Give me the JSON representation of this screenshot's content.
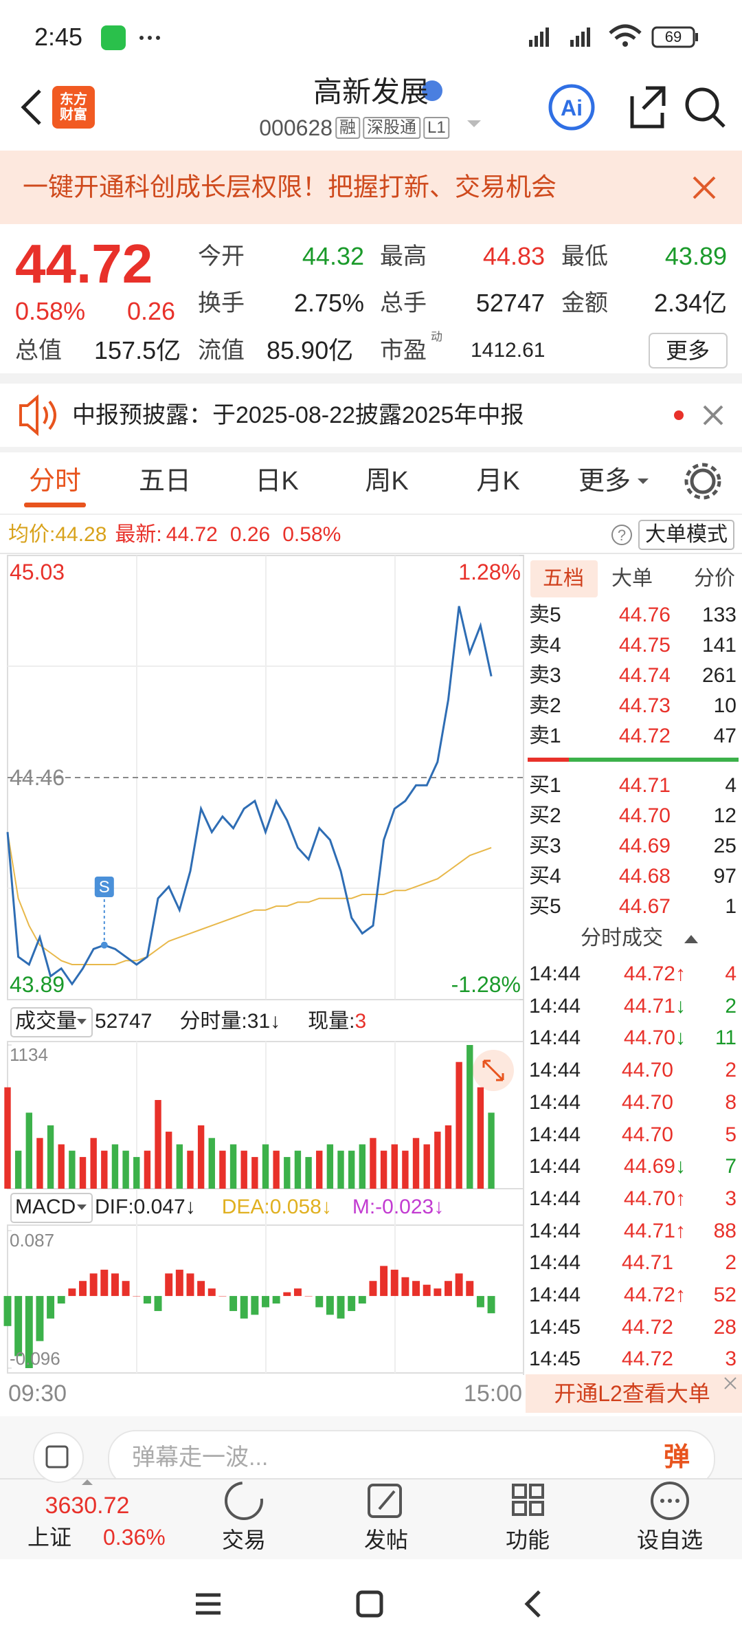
{
  "status_bar": {
    "time": "2:45",
    "battery": "69"
  },
  "header": {
    "logo": "东方财富",
    "title": "高新发展",
    "code": "000628",
    "tags": [
      "融",
      "深股通",
      "L1"
    ]
  },
  "banner": "一键开通科创成长层权限！把握打新、交易机会",
  "quote": {
    "price": "44.72",
    "change_pct": "0.58%",
    "change": "0.26",
    "fields": [
      {
        "label": "今开",
        "value": "44.32",
        "color": "#1a9a2a"
      },
      {
        "label": "最高",
        "value": "44.83",
        "color": "#e8312a"
      },
      {
        "label": "最低",
        "value": "43.89",
        "color": "#1a9a2a"
      },
      {
        "label": "换手",
        "value": "2.75%",
        "color": "#222222"
      },
      {
        "label": "总手",
        "value": "52747",
        "color": "#222222"
      },
      {
        "label": "金额",
        "value": "2.34亿",
        "color": "#222222"
      },
      {
        "label": "总值",
        "value": "157.5亿",
        "color": "#222222"
      },
      {
        "label": "流值",
        "value": "85.90亿",
        "color": "#222222"
      },
      {
        "label": "市盈",
        "sup": "动",
        "value": "1412.61",
        "color": "#222222"
      }
    ],
    "more": "更多"
  },
  "notice": "中报预披露：于2025-08-22披露2025年中报",
  "tabs": [
    "分时",
    "五日",
    "日K",
    "周K",
    "月K",
    "更多"
  ],
  "info_bar": {
    "avg_label": "均价:",
    "avg": "44.28",
    "latest_label": "最新:",
    "latest": "44.72",
    "change": "0.26",
    "change_pct": "0.58%",
    "help": "?",
    "mode": "大单模式"
  },
  "chart_data": [
    {
      "type": "line",
      "annotation": "S",
      "series": [
        {
          "color": "#2e6db4",
          "values": [
            44.32,
            44.0,
            43.98,
            44.05,
            43.95,
            43.97,
            43.93,
            43.97,
            44.02,
            44.03,
            44.02,
            44.0,
            43.98,
            44.0,
            44.15,
            44.18,
            44.12,
            44.22,
            44.38,
            44.32,
            44.36,
            44.33,
            44.38,
            44.4,
            44.32,
            44.4,
            44.35,
            44.28,
            44.25,
            44.33,
            44.3,
            44.22,
            44.1,
            44.06,
            44.08,
            44.3,
            44.38,
            44.4,
            44.44,
            44.44,
            44.5,
            44.66,
            44.9,
            44.78,
            44.85,
            44.72
          ]
        },
        {
          "color": "#e8b84a",
          "values": [
            44.32,
            44.15,
            44.08,
            44.03,
            44.01,
            43.99,
            43.98,
            43.98,
            43.98,
            43.98,
            43.98,
            43.99,
            43.99,
            44.0,
            44.02,
            44.04,
            44.05,
            44.06,
            44.07,
            44.08,
            44.09,
            44.1,
            44.11,
            44.12,
            44.12,
            44.13,
            44.13,
            44.14,
            44.14,
            44.15,
            44.15,
            44.15,
            44.15,
            44.16,
            44.16,
            44.16,
            44.17,
            44.17,
            44.18,
            44.19,
            44.2,
            44.22,
            44.24,
            44.26,
            44.27,
            44.28
          ]
        }
      ],
      "ylim": [
        43.89,
        45.03
      ],
      "yticks": [
        43.89,
        44.46,
        45.03
      ],
      "y2lim": [
        -1.28,
        1.28
      ],
      "y2ticks": [
        {
          "value": -1.28,
          "label": "-1.28%"
        },
        {
          "value": 1.28,
          "label": "1.28%"
        }
      ],
      "x_labels": [
        "09:30",
        "15:00"
      ]
    },
    {
      "type": "bar",
      "title": "成交量",
      "total": "52747",
      "minute_label": "分时量:",
      "minute_value": "31↓",
      "current_label": "现量:",
      "current_value": "3",
      "values": [
        800,
        300,
        600,
        400,
        500,
        350,
        300,
        250,
        400,
        300,
        350,
        300,
        250,
        300,
        700,
        450,
        350,
        300,
        500,
        400,
        300,
        350,
        300,
        250,
        350,
        300,
        250,
        300,
        250,
        300,
        350,
        300,
        300,
        350,
        400,
        300,
        350,
        300,
        400,
        350,
        450,
        500,
        1000,
        1134,
        800,
        600
      ],
      "ylim": [
        0,
        1134
      ],
      "yticks": [
        1134
      ]
    },
    {
      "type": "bar",
      "title": "MACD",
      "dif": "DIF:0.047↓",
      "dea": "DEA:0.058↓",
      "m": "M:-0.023↓",
      "values": [
        -0.04,
        -0.08,
        -0.096,
        -0.06,
        -0.03,
        -0.01,
        0.01,
        0.02,
        0.03,
        0.035,
        0.03,
        0.02,
        0,
        -0.01,
        -0.02,
        0.03,
        0.035,
        0.03,
        0.02,
        0.01,
        0,
        -0.02,
        -0.03,
        -0.025,
        -0.015,
        -0.01,
        0.005,
        0.01,
        0,
        -0.015,
        -0.025,
        -0.03,
        -0.02,
        -0.01,
        0.02,
        0.04,
        0.035,
        0.025,
        0.02,
        0.015,
        0.01,
        0.02,
        0.03,
        0.02,
        -0.015,
        -0.023
      ],
      "ylim": [
        -0.096,
        0.087
      ],
      "yticks": [
        -0.096,
        0.087
      ]
    }
  ],
  "order_book": {
    "tabs": [
      "五档",
      "大单",
      "分价"
    ],
    "asks": [
      {
        "label": "卖5",
        "price": "44.76",
        "volume": "133"
      },
      {
        "label": "卖4",
        "price": "44.75",
        "volume": "141"
      },
      {
        "label": "卖3",
        "price": "44.74",
        "volume": "261"
      },
      {
        "label": "卖2",
        "price": "44.73",
        "volume": "10"
      },
      {
        "label": "卖1",
        "price": "44.72",
        "volume": "47"
      }
    ],
    "bids": [
      {
        "label": "买1",
        "price": "44.71",
        "volume": "4"
      },
      {
        "label": "买2",
        "price": "44.70",
        "volume": "12"
      },
      {
        "label": "买3",
        "price": "44.69",
        "volume": "25"
      },
      {
        "label": "买4",
        "price": "44.68",
        "volume": "97"
      },
      {
        "label": "买5",
        "price": "44.67",
        "volume": "1"
      }
    ]
  },
  "trades": {
    "title": "分时成交",
    "rows": [
      {
        "time": "14:44",
        "price": "44.72",
        "arrow": "↑",
        "volume": "4",
        "color": "#e8312a"
      },
      {
        "time": "14:44",
        "price": "44.71",
        "arrow": "↓",
        "volume": "2",
        "color": "#1a9a2a"
      },
      {
        "time": "14:44",
        "price": "44.70",
        "arrow": "↓",
        "volume": "11",
        "color": "#1a9a2a"
      },
      {
        "time": "14:44",
        "price": "44.70",
        "volume": "2",
        "color": "#e8312a"
      },
      {
        "time": "14:44",
        "price": "44.70",
        "volume": "8",
        "color": "#e8312a"
      },
      {
        "time": "14:44",
        "price": "44.70",
        "volume": "5",
        "color": "#e8312a"
      },
      {
        "time": "14:44",
        "price": "44.69",
        "arrow": "↓",
        "volume": "7",
        "color": "#1a9a2a"
      },
      {
        "time": "14:44",
        "price": "44.70",
        "arrow": "↑",
        "volume": "3",
        "color": "#e8312a"
      },
      {
        "time": "14:44",
        "price": "44.71",
        "arrow": "↑",
        "volume": "88",
        "color": "#e8312a"
      },
      {
        "time": "14:44",
        "price": "44.71",
        "volume": "2",
        "color": "#e8312a"
      },
      {
        "time": "14:44",
        "price": "44.72",
        "arrow": "↑",
        "volume": "52",
        "color": "#e8312a"
      },
      {
        "time": "14:45",
        "price": "44.72",
        "volume": "28",
        "color": "#e8312a"
      },
      {
        "time": "14:45",
        "price": "44.72",
        "volume": "3",
        "color": "#e8312a"
      }
    ],
    "l2": "开通L2查看大单"
  },
  "comment": {
    "placeholder": "弹幕走一波...",
    "button": "弹"
  },
  "bottom_nav": {
    "index": {
      "value": "3630.72",
      "name": "上证",
      "change": "0.36%"
    },
    "items": [
      "交易",
      "发帖",
      "功能",
      "设自选"
    ]
  }
}
